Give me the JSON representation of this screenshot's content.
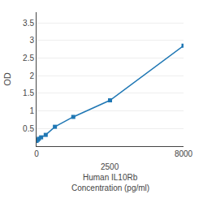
{
  "chart_data": {
    "type": "line",
    "x": [
      0,
      62.5,
      125,
      250,
      500,
      1000,
      2000,
      4000,
      8000
    ],
    "values": [
      0.15,
      0.18,
      0.21,
      0.25,
      0.32,
      0.55,
      0.83,
      1.3,
      2.85
    ],
    "marker": "square",
    "ylabel": "OD",
    "annotations": [
      "2500",
      "Human IL10Rb",
      "Concentration (pg/ml)"
    ],
    "xlim": [
      0,
      8000
    ],
    "xticks": [
      0,
      8000
    ],
    "ylim": [
      0.0,
      3.8
    ],
    "yticks": [
      0.5,
      1,
      1.5,
      2,
      2.5,
      3,
      3.5
    ],
    "grid": true
  }
}
